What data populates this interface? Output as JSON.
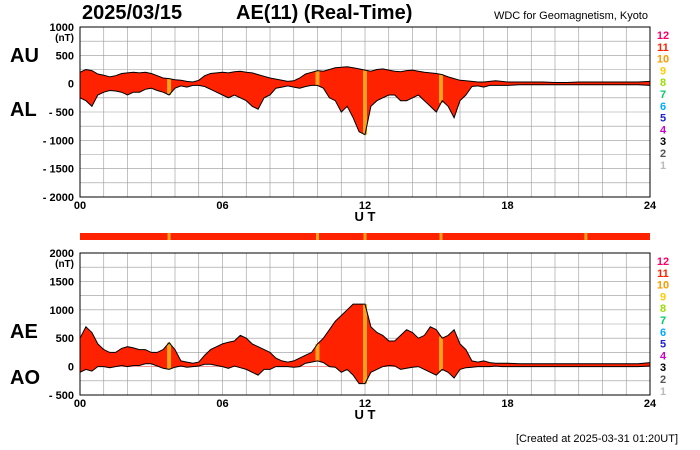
{
  "header": {
    "date": "2025/03/15",
    "title": "AE(11) (Real-Time)",
    "source": "WDC for Geomagnetism, Kyoto"
  },
  "footer": {
    "created": "[Created at 2025-03-31 01:20UT]"
  },
  "colors": {
    "fill": "#ff2200",
    "highlight": "#f6a21c",
    "line": "#000000",
    "grid": "#999999"
  },
  "station_count_scale": {
    "labels": [
      "12",
      "11",
      "10",
      "9",
      "8",
      "7",
      "6",
      "5",
      "4",
      "3",
      "2",
      "1"
    ],
    "colors": [
      "#ff0066",
      "#ff2200",
      "#ff9900",
      "#ffcc00",
      "#99dd00",
      "#00cc66",
      "#00aaff",
      "#2222cc",
      "#cc00cc",
      "#000000",
      "#555555",
      "#bbbbbb"
    ]
  },
  "station_bar": {
    "fill": "#ff2200",
    "highlight_hours": [
      3.75,
      10.0,
      12.0,
      15.2,
      21.3
    ]
  },
  "chart_data": [
    {
      "type": "area",
      "series_labels": {
        "upper": "AU",
        "lower": "AL"
      },
      "unit": "(nT)",
      "xlabel": "U T",
      "xlim": [
        0,
        24
      ],
      "xticks": [
        "00",
        "06",
        "12",
        "18",
        "24"
      ],
      "ylim": [
        -2000,
        1000
      ],
      "yticks": [
        "1000",
        "500",
        "0",
        "- 500",
        "- 1000",
        "- 1500",
        "- 2000"
      ],
      "grid": true,
      "highlight_hours": [
        3.75,
        10.0,
        12.0,
        15.2
      ],
      "x": [
        0,
        0.25,
        0.5,
        0.75,
        1,
        1.25,
        1.5,
        1.75,
        2,
        2.25,
        2.5,
        2.75,
        3,
        3.25,
        3.5,
        3.75,
        4,
        4.25,
        4.5,
        4.75,
        5,
        5.25,
        5.5,
        5.75,
        6,
        6.25,
        6.5,
        6.75,
        7,
        7.25,
        7.5,
        7.75,
        8,
        8.25,
        8.5,
        8.75,
        9,
        9.25,
        9.5,
        9.75,
        10,
        10.25,
        10.5,
        10.75,
        11,
        11.25,
        11.5,
        11.75,
        12,
        12.25,
        12.5,
        12.75,
        13,
        13.25,
        13.5,
        13.75,
        14,
        14.25,
        14.5,
        14.75,
        15,
        15.25,
        15.5,
        15.75,
        16,
        16.25,
        16.5,
        16.75,
        17,
        17.25,
        17.5,
        17.75,
        18,
        18.5,
        19,
        19.5,
        20,
        20.5,
        21,
        21.5,
        22,
        22.5,
        23,
        23.5,
        24
      ],
      "upper": [
        200,
        250,
        230,
        170,
        150,
        120,
        140,
        180,
        190,
        200,
        190,
        200,
        180,
        140,
        100,
        90,
        70,
        60,
        40,
        30,
        60,
        140,
        180,
        190,
        200,
        190,
        210,
        220,
        200,
        190,
        160,
        130,
        100,
        80,
        60,
        40,
        50,
        100,
        170,
        200,
        230,
        220,
        250,
        280,
        290,
        300,
        280,
        260,
        240,
        220,
        250,
        260,
        240,
        220,
        210,
        230,
        240,
        220,
        200,
        190,
        180,
        160,
        120,
        90,
        60,
        50,
        40,
        30,
        30,
        40,
        50,
        40,
        30,
        30,
        30,
        30,
        20,
        20,
        30,
        30,
        30,
        30,
        30,
        30,
        40
      ],
      "lower": [
        -250,
        -300,
        -400,
        -200,
        -150,
        -120,
        -130,
        -150,
        -200,
        -150,
        -150,
        -100,
        -80,
        -120,
        -150,
        -200,
        -80,
        -40,
        -60,
        -30,
        -30,
        -50,
        -100,
        -150,
        -200,
        -250,
        -200,
        -250,
        -300,
        -400,
        -450,
        -250,
        -200,
        -80,
        -60,
        -40,
        -60,
        -80,
        -50,
        -30,
        -30,
        -80,
        -250,
        -300,
        -500,
        -400,
        -600,
        -850,
        -900,
        -400,
        -300,
        -250,
        -200,
        -200,
        -300,
        -300,
        -250,
        -200,
        -300,
        -400,
        -500,
        -300,
        -400,
        -600,
        -300,
        -200,
        -50,
        -40,
        -60,
        -30,
        -30,
        -30,
        -30,
        -20,
        -20,
        -20,
        -20,
        -20,
        -20,
        -20,
        -20,
        -20,
        -20,
        -20,
        -30
      ]
    },
    {
      "type": "area",
      "series_labels": {
        "upper": "AE",
        "lower": "AO"
      },
      "unit": "(nT)",
      "xlabel": "U T",
      "xlim": [
        0,
        24
      ],
      "xticks": [
        "00",
        "06",
        "12",
        "18",
        "24"
      ],
      "ylim": [
        -500,
        2000
      ],
      "yticks": [
        "2000",
        "1500",
        "1000",
        "500",
        "0",
        "- 500"
      ],
      "grid": true,
      "highlight_hours": [
        3.75,
        10.0,
        12.0,
        15.2
      ],
      "x": [
        0,
        0.25,
        0.5,
        0.75,
        1,
        1.25,
        1.5,
        1.75,
        2,
        2.25,
        2.5,
        2.75,
        3,
        3.25,
        3.5,
        3.75,
        4,
        4.25,
        4.5,
        4.75,
        5,
        5.25,
        5.5,
        5.75,
        6,
        6.25,
        6.5,
        6.75,
        7,
        7.25,
        7.5,
        7.75,
        8,
        8.25,
        8.5,
        8.75,
        9,
        9.25,
        9.5,
        9.75,
        10,
        10.25,
        10.5,
        10.75,
        11,
        11.25,
        11.5,
        11.75,
        12,
        12.25,
        12.5,
        12.75,
        13,
        13.25,
        13.5,
        13.75,
        14,
        14.25,
        14.5,
        14.75,
        15,
        15.25,
        15.5,
        15.75,
        16,
        16.25,
        16.5,
        16.75,
        17,
        17.25,
        17.5,
        17.75,
        18,
        18.5,
        19,
        19.5,
        20,
        20.5,
        21,
        21.5,
        22,
        22.5,
        23,
        23.5,
        24
      ],
      "upper": [
        500,
        700,
        600,
        400,
        300,
        250,
        250,
        320,
        350,
        330,
        300,
        300,
        250,
        250,
        300,
        420,
        300,
        100,
        80,
        60,
        80,
        200,
        300,
        350,
        400,
        430,
        450,
        550,
        500,
        400,
        350,
        300,
        250,
        150,
        100,
        80,
        100,
        150,
        200,
        250,
        400,
        500,
        650,
        800,
        900,
        1000,
        1100,
        1100,
        1100,
        700,
        600,
        550,
        450,
        450,
        550,
        650,
        600,
        500,
        550,
        700,
        650,
        500,
        550,
        650,
        400,
        300,
        100,
        80,
        100,
        70,
        60,
        60,
        60,
        50,
        50,
        50,
        50,
        50,
        50,
        50,
        50,
        50,
        50,
        50,
        70
      ],
      "lower": [
        -100,
        -50,
        -80,
        0,
        0,
        -20,
        0,
        20,
        0,
        20,
        20,
        50,
        50,
        10,
        -30,
        -50,
        -10,
        10,
        -10,
        0,
        10,
        40,
        40,
        20,
        0,
        -30,
        10,
        -20,
        -50,
        -100,
        -150,
        -50,
        -50,
        0,
        0,
        0,
        -10,
        0,
        60,
        80,
        100,
        70,
        0,
        -10,
        -100,
        -50,
        -150,
        -300,
        -300,
        -100,
        -50,
        0,
        20,
        10,
        -50,
        -30,
        -10,
        0,
        -50,
        -100,
        -150,
        -50,
        -100,
        -200,
        -50,
        -20,
        -10,
        0,
        0,
        0,
        10,
        0,
        0,
        0,
        0,
        0,
        0,
        0,
        0,
        0,
        0,
        0,
        0,
        0,
        10
      ]
    }
  ]
}
